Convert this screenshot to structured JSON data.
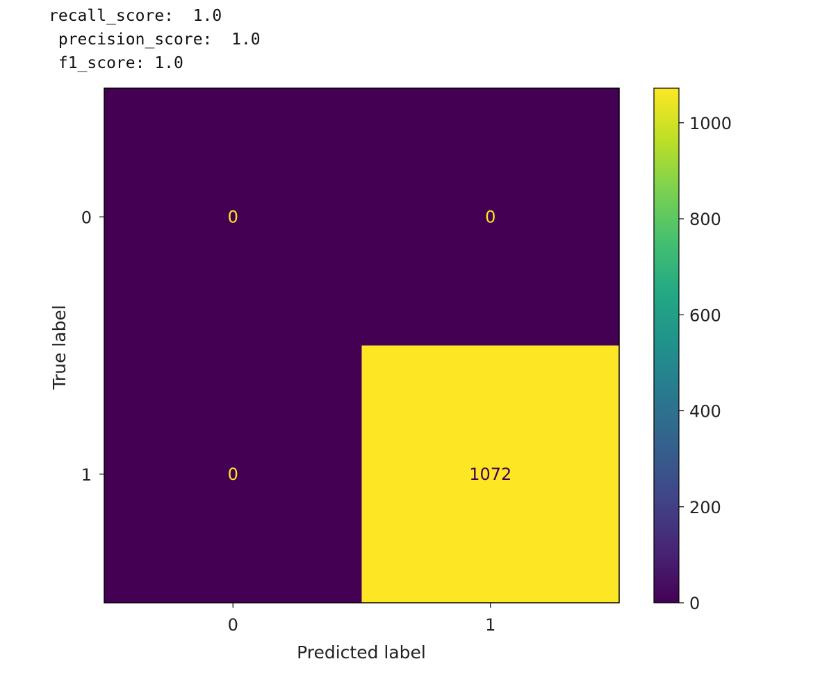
{
  "output_lines": [
    "recall_score:  1.0",
    " precision_score:  1.0",
    " f1_score: 1.0"
  ],
  "chart_data": {
    "type": "heatmap",
    "x_categories": [
      "0",
      "1"
    ],
    "y_categories": [
      "0",
      "1"
    ],
    "matrix": [
      [
        0,
        0
      ],
      [
        0,
        1072
      ]
    ],
    "cell_labels": [
      [
        "0",
        "0"
      ],
      [
        "0",
        "1072"
      ]
    ],
    "xlabel": "Predicted label",
    "ylabel": "True label",
    "colormap": "viridis",
    "colorbar": {
      "range": [
        0,
        1072
      ],
      "ticks": [
        0,
        200,
        400,
        600,
        800,
        1000
      ],
      "tick_labels": [
        "0",
        "200",
        "400",
        "600",
        "800",
        "1000"
      ]
    },
    "colors": {
      "low": "#440154",
      "high": "#fde725",
      "low_text": "#fde725",
      "high_text": "#440154"
    },
    "grid": false
  }
}
